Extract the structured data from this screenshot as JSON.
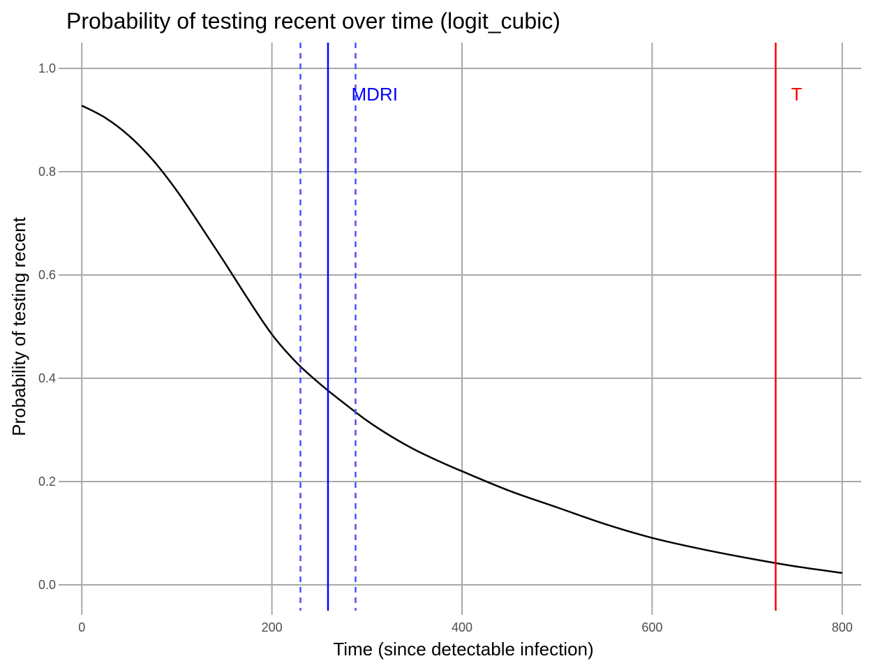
{
  "chart_data": {
    "type": "line",
    "title": "Probability of testing recent over time (logit_cubic)",
    "xlabel": "Time (since detectable infection)",
    "ylabel": "Probability of testing recent",
    "xlim": [
      -20,
      820
    ],
    "ylim": [
      -0.05,
      1.05
    ],
    "xticks": [
      0,
      200,
      400,
      600,
      800
    ],
    "yticks": [
      0.0,
      0.2,
      0.4,
      0.6,
      0.8,
      1.0
    ],
    "xtick_labels": [
      "0",
      "200",
      "400",
      "600",
      "800"
    ],
    "ytick_labels": [
      "0.0",
      "0.2",
      "0.4",
      "0.6",
      "0.8",
      "1.0"
    ],
    "grid": true,
    "series": [
      {
        "color": "#000000",
        "x": [
          0,
          25,
          50,
          75,
          100,
          125,
          150,
          175,
          200,
          225,
          250,
          275,
          300,
          325,
          350,
          375,
          400,
          450,
          500,
          550,
          600,
          650,
          700,
          750,
          800
        ],
        "y": [
          0.928,
          0.904,
          0.869,
          0.822,
          0.763,
          0.695,
          0.625,
          0.553,
          0.485,
          0.432,
          0.39,
          0.353,
          0.318,
          0.288,
          0.262,
          0.24,
          0.22,
          0.182,
          0.15,
          0.118,
          0.091,
          0.07,
          0.052,
          0.036,
          0.023
        ]
      }
    ],
    "vlines": [
      {
        "x": 230,
        "color": "#4d4dff",
        "style": "dashed"
      },
      {
        "x": 259,
        "color": "#0000ff",
        "style": "solid"
      },
      {
        "x": 288,
        "color": "#4d4dff",
        "style": "dashed"
      },
      {
        "x": 730,
        "color": "#ff0000",
        "style": "solid"
      }
    ],
    "annotations": [
      {
        "text": "MDRI",
        "x": 308,
        "y": 0.95,
        "color": "#0000ff"
      },
      {
        "text": "T",
        "x": 752,
        "y": 0.95,
        "color": "#ff0000"
      }
    ]
  }
}
